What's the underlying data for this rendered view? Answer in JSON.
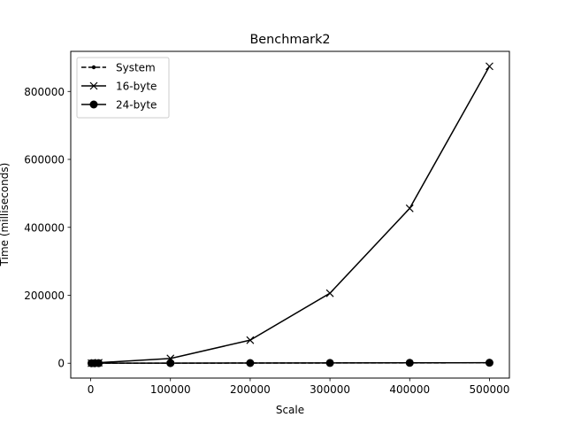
{
  "chart_data": {
    "type": "line",
    "title": "Benchmark2",
    "xlabel": "Scale",
    "ylabel": "Time (milliseconds)",
    "xlim": [
      -25000,
      525000
    ],
    "ylim": [
      -43700,
      918000
    ],
    "x_ticks": [
      0,
      100000,
      200000,
      300000,
      400000,
      500000
    ],
    "y_ticks": [
      0,
      200000,
      400000,
      600000,
      800000
    ],
    "x_tick_labels": [
      "0",
      "100000",
      "200000",
      "300000",
      "400000",
      "500000"
    ],
    "y_tick_labels": [
      "0",
      "200000",
      "400000",
      "600000",
      "800000"
    ],
    "grid": false,
    "legend_position": "upper-left",
    "series": [
      {
        "name": "System",
        "line_style": "dashed",
        "marker": "small-dot",
        "color": "#000000",
        "x": [
          1000,
          5000,
          10000,
          100000,
          200000,
          300000,
          400000,
          500000
        ],
        "y": [
          20,
          80,
          150,
          300,
          500,
          800,
          1000,
          1200
        ]
      },
      {
        "name": "16-byte",
        "line_style": "solid",
        "marker": "x",
        "color": "#000000",
        "x": [
          1000,
          5000,
          10000,
          100000,
          200000,
          300000,
          400000,
          500000
        ],
        "y": [
          100,
          500,
          1500,
          14000,
          68000,
          206000,
          456000,
          874000
        ]
      },
      {
        "name": "24-byte",
        "line_style": "solid",
        "marker": "circle",
        "color": "#000000",
        "x": [
          1000,
          5000,
          10000,
          100000,
          200000,
          300000,
          400000,
          500000
        ],
        "y": [
          30,
          100,
          200,
          400,
          600,
          900,
          1200,
          1500
        ]
      }
    ]
  }
}
